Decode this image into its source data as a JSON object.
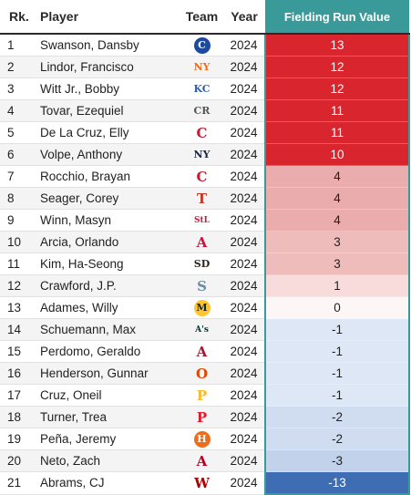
{
  "headers": {
    "rank": "Rk.",
    "player": "Player",
    "team": "Team",
    "year": "Year",
    "frv": "Fielding Run Value"
  },
  "rows": [
    {
      "rank": "1",
      "player": "Swanson, Dansby",
      "team_icon": "cubs-logo-icon",
      "year": "2024",
      "frv": "13",
      "frv_value": 13
    },
    {
      "rank": "2",
      "player": "Lindor, Francisco",
      "team_icon": "mets-logo-icon",
      "year": "2024",
      "frv": "12",
      "frv_value": 12
    },
    {
      "rank": "3",
      "player": "Witt Jr., Bobby",
      "team_icon": "royals-logo-icon",
      "year": "2024",
      "frv": "12",
      "frv_value": 12
    },
    {
      "rank": "4",
      "player": "Tovar, Ezequiel",
      "team_icon": "rockies-logo-icon",
      "year": "2024",
      "frv": "11",
      "frv_value": 11
    },
    {
      "rank": "5",
      "player": "De La Cruz, Elly",
      "team_icon": "reds-logo-icon",
      "year": "2024",
      "frv": "11",
      "frv_value": 11
    },
    {
      "rank": "6",
      "player": "Volpe, Anthony",
      "team_icon": "yankees-logo-icon",
      "year": "2024",
      "frv": "10",
      "frv_value": 10
    },
    {
      "rank": "7",
      "player": "Rocchio, Brayan",
      "team_icon": "guardians-logo-icon",
      "year": "2024",
      "frv": "4",
      "frv_value": 4
    },
    {
      "rank": "8",
      "player": "Seager, Corey",
      "team_icon": "rangers-logo-icon",
      "year": "2024",
      "frv": "4",
      "frv_value": 4
    },
    {
      "rank": "9",
      "player": "Winn, Masyn",
      "team_icon": "cardinals-logo-icon",
      "year": "2024",
      "frv": "4",
      "frv_value": 4
    },
    {
      "rank": "10",
      "player": "Arcia, Orlando",
      "team_icon": "braves-logo-icon",
      "year": "2024",
      "frv": "3",
      "frv_value": 3
    },
    {
      "rank": "11",
      "player": "Kim, Ha-Seong",
      "team_icon": "padres-logo-icon",
      "year": "2024",
      "frv": "3",
      "frv_value": 3
    },
    {
      "rank": "12",
      "player": "Crawford, J.P.",
      "team_icon": "mariners-logo-icon",
      "year": "2024",
      "frv": "1",
      "frv_value": 1
    },
    {
      "rank": "13",
      "player": "Adames, Willy",
      "team_icon": "brewers-logo-icon",
      "year": "2024",
      "frv": "0",
      "frv_value": 0
    },
    {
      "rank": "14",
      "player": "Schuemann, Max",
      "team_icon": "athletics-logo-icon",
      "year": "2024",
      "frv": "-1",
      "frv_value": -1
    },
    {
      "rank": "15",
      "player": "Perdomo, Geraldo",
      "team_icon": "diamondbacks-logo-icon",
      "year": "2024",
      "frv": "-1",
      "frv_value": -1
    },
    {
      "rank": "16",
      "player": "Henderson, Gunnar",
      "team_icon": "orioles-logo-icon",
      "year": "2024",
      "frv": "-1",
      "frv_value": -1
    },
    {
      "rank": "17",
      "player": "Cruz, Oneil",
      "team_icon": "pirates-logo-icon",
      "year": "2024",
      "frv": "-1",
      "frv_value": -1
    },
    {
      "rank": "18",
      "player": "Turner, Trea",
      "team_icon": "phillies-logo-icon",
      "year": "2024",
      "frv": "-2",
      "frv_value": -2
    },
    {
      "rank": "19",
      "player": "Peña, Jeremy",
      "team_icon": "astros-logo-icon",
      "year": "2024",
      "frv": "-2",
      "frv_value": -2
    },
    {
      "rank": "20",
      "player": "Neto, Zach",
      "team_icon": "angels-logo-icon",
      "year": "2024",
      "frv": "-3",
      "frv_value": -3
    },
    {
      "rank": "21",
      "player": "Abrams, CJ",
      "team_icon": "nationals-logo-icon",
      "year": "2024",
      "frv": "-13",
      "frv_value": -13
    }
  ],
  "colors": {
    "header_accent": "#3a9a9a",
    "strong_positive": "#d9262e",
    "strong_negative": "#3f6db3"
  }
}
